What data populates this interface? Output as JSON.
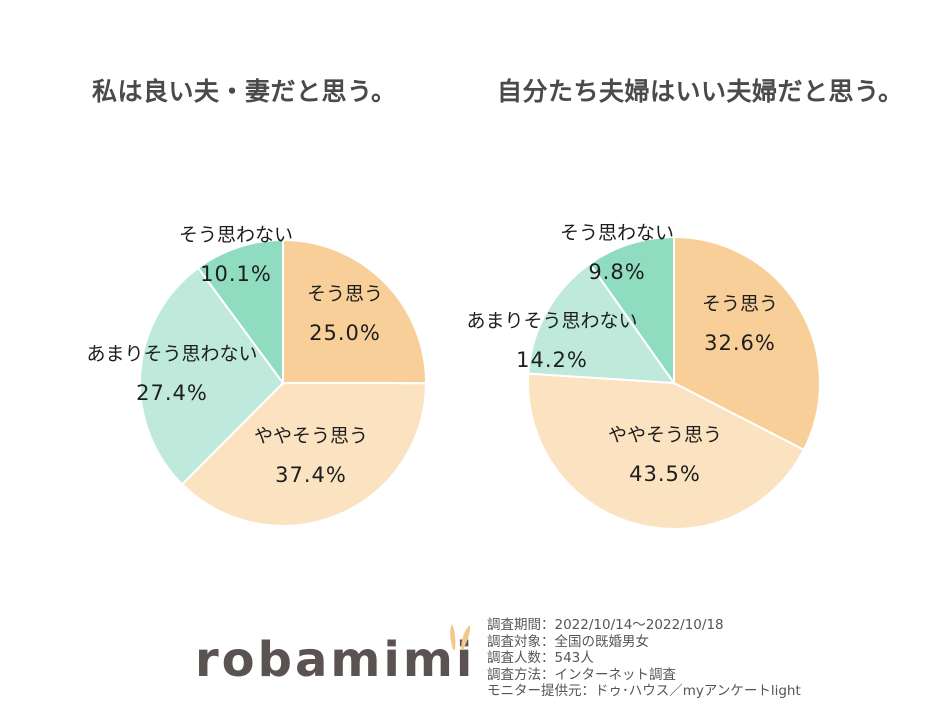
{
  "chart_data": [
    {
      "type": "pie",
      "title": "私は良い夫・妻だと思う。",
      "categories": [
        "そう思う",
        "ややそう思う",
        "あまりそう思わない",
        "そう思わない"
      ],
      "values": [
        25.0,
        37.4,
        27.4,
        10.1
      ],
      "value_labels": [
        "25.0%",
        "37.4%",
        "27.4%",
        "10.1%"
      ],
      "colors": [
        "#f8cf98",
        "#fbe2c1",
        "#bfeadb",
        "#8fdcc0"
      ],
      "start": "12 o'clock, clockwise"
    },
    {
      "type": "pie",
      "title": "自分たち夫婦はいい夫婦だと思う。",
      "categories": [
        "そう思う",
        "ややそう思う",
        "あまりそう思わない",
        "そう思わない"
      ],
      "values": [
        32.6,
        43.5,
        14.2,
        9.8
      ],
      "value_labels": [
        "32.6%",
        "43.5%",
        "14.2%",
        "9.8%"
      ],
      "colors": [
        "#f8cf98",
        "#fbe2c1",
        "#bfeadb",
        "#8fdcc0"
      ],
      "start": "12 o'clock, clockwise"
    }
  ],
  "logo": {
    "text": "robamimi",
    "color": "#5b5352",
    "ear_color": "#f3c98b"
  },
  "survey_info": [
    "調査期間：2022/10/14～2022/10/18",
    "調査対象：全国の既婚男女",
    "調査人数：543人",
    "調査方法：インターネット調査",
    "モニター提供元：ドゥ･ハウス／myアンケートlight"
  ]
}
